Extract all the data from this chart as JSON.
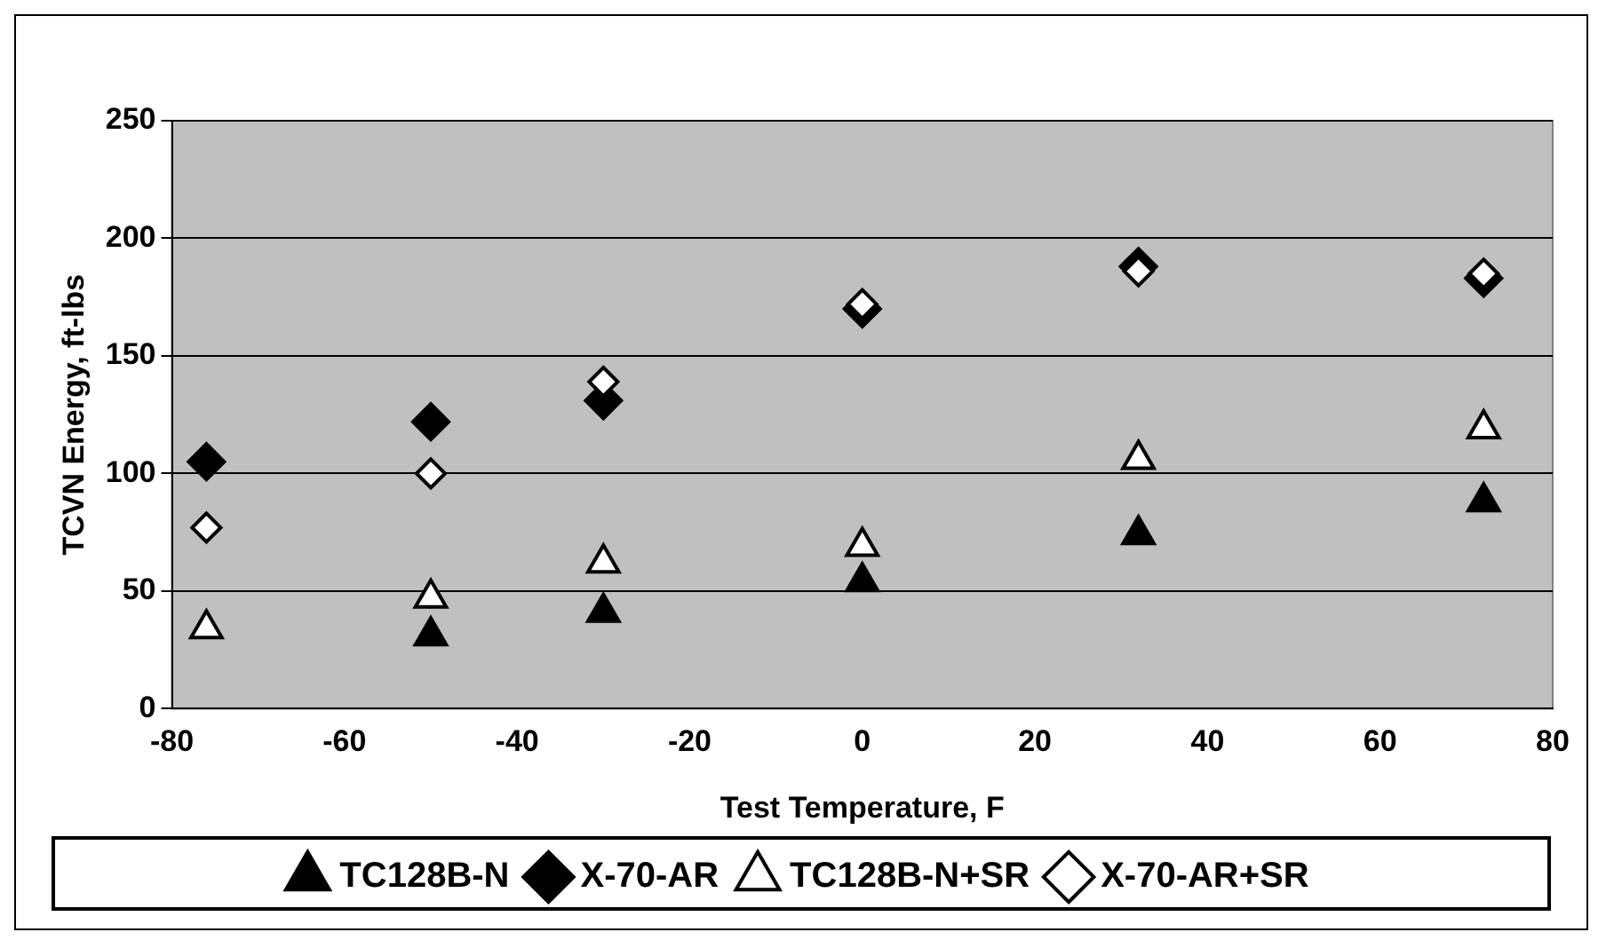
{
  "chart_data": {
    "type": "scatter",
    "xlabel": "Test Temperature, F",
    "ylabel": "TCVN Energy, ft-lbs",
    "xlim": [
      -80,
      80
    ],
    "xticks": [
      -80,
      -60,
      -40,
      -20,
      0,
      20,
      40,
      60,
      80
    ],
    "ylim": [
      0,
      250
    ],
    "yticks": [
      0,
      50,
      100,
      150,
      200,
      250
    ],
    "grid": "y",
    "legend": "bottom",
    "x": [
      -76,
      -50,
      -30,
      0,
      32,
      72
    ],
    "series": [
      {
        "name": "TC128B-N",
        "color": "#000000",
        "marker": "triangle",
        "x": [
          -50,
          -30,
          0,
          32,
          72
        ],
        "values": [
          31,
          41,
          54,
          74,
          88
        ]
      },
      {
        "name": "X-70-AR",
        "color": "#000000",
        "marker": "diamond",
        "values": [
          105,
          122,
          131,
          170,
          188,
          183
        ]
      },
      {
        "name": "TC128B-N+SR",
        "color": "#ffffff",
        "marker": "triangle",
        "values": [
          34,
          47,
          62,
          69,
          106,
          119
        ]
      },
      {
        "name": "X-70-AR+SR",
        "color": "#ffffff",
        "marker": "diamond",
        "values": [
          77,
          100,
          139,
          172,
          186,
          185
        ]
      }
    ]
  }
}
